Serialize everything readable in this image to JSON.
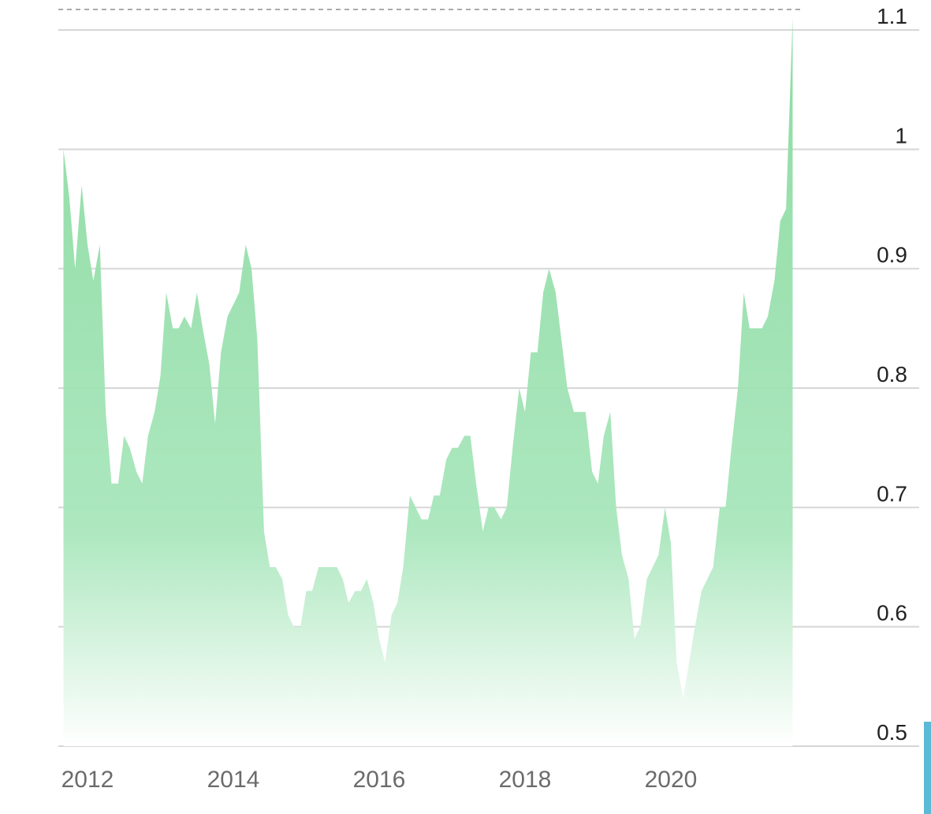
{
  "chart_data": {
    "type": "area",
    "title": "",
    "xlabel": "",
    "ylabel": "",
    "x_tick_labels": [
      "2012",
      "2014",
      "2016",
      "2018",
      "2020"
    ],
    "x_tick_values": [
      2012,
      2014,
      2016,
      2018,
      2020
    ],
    "y_tick_labels": [
      "0.5",
      "0.6",
      "0.7",
      "0.8",
      "0.9",
      "1",
      "1.1"
    ],
    "y_tick_values": [
      0.5,
      0.6,
      0.7,
      0.8,
      0.9,
      1.0,
      1.1
    ],
    "xlim": [
      2011.65,
      2021.65
    ],
    "ylim": [
      0.5,
      1.1
    ],
    "reference_line": 1.12,
    "grid": true,
    "y_axis_side": "right",
    "colors": {
      "area_top": "#8edba3",
      "area_bottom": "#ffffff",
      "grid": "#d6d6d6",
      "reference_line": "#aaaaaa",
      "accent_bar": "#5bbad5"
    },
    "series": [
      {
        "x": [
          2011.67,
          2011.75,
          2011.83,
          2011.92,
          2012.0,
          2012.08,
          2012.17,
          2012.25,
          2012.33,
          2012.42,
          2012.5,
          2012.58,
          2012.67,
          2012.75,
          2012.83,
          2012.92,
          2013.0,
          2013.08,
          2013.17,
          2013.25,
          2013.33,
          2013.42,
          2013.5,
          2013.58,
          2013.67,
          2013.75,
          2013.83,
          2013.92,
          2014.0,
          2014.08,
          2014.17,
          2014.25,
          2014.33,
          2014.42,
          2014.5,
          2014.58,
          2014.67,
          2014.75,
          2014.83,
          2014.92,
          2015.0,
          2015.08,
          2015.17,
          2015.25,
          2015.33,
          2015.42,
          2015.5,
          2015.58,
          2015.67,
          2015.75,
          2015.83,
          2015.92,
          2016.0,
          2016.08,
          2016.17,
          2016.25,
          2016.33,
          2016.42,
          2016.5,
          2016.58,
          2016.67,
          2016.75,
          2016.83,
          2016.92,
          2017.0,
          2017.08,
          2017.17,
          2017.25,
          2017.33,
          2017.42,
          2017.5,
          2017.58,
          2017.67,
          2017.75,
          2017.83,
          2017.92,
          2018.0,
          2018.08,
          2018.17,
          2018.25,
          2018.33,
          2018.42,
          2018.5,
          2018.58,
          2018.67,
          2018.75,
          2018.83,
          2018.92,
          2019.0,
          2019.08,
          2019.17,
          2019.25,
          2019.33,
          2019.42,
          2019.5,
          2019.58,
          2019.67,
          2019.75,
          2019.83,
          2019.92,
          2020.0,
          2020.08,
          2020.17,
          2020.25,
          2020.33,
          2020.42,
          2020.5,
          2020.58,
          2020.67,
          2020.75,
          2020.83,
          2020.92,
          2021.0,
          2021.08,
          2021.17,
          2021.25,
          2021.33,
          2021.42,
          2021.5,
          2021.58,
          2021.67
        ],
        "y": [
          1.0,
          0.96,
          0.9,
          0.97,
          0.92,
          0.89,
          0.92,
          0.78,
          0.72,
          0.72,
          0.76,
          0.75,
          0.73,
          0.72,
          0.76,
          0.78,
          0.81,
          0.88,
          0.85,
          0.85,
          0.86,
          0.85,
          0.88,
          0.85,
          0.82,
          0.77,
          0.83,
          0.86,
          0.87,
          0.88,
          0.92,
          0.9,
          0.84,
          0.68,
          0.65,
          0.65,
          0.64,
          0.61,
          0.6,
          0.6,
          0.63,
          0.63,
          0.65,
          0.65,
          0.65,
          0.65,
          0.64,
          0.62,
          0.63,
          0.63,
          0.64,
          0.62,
          0.59,
          0.57,
          0.61,
          0.62,
          0.65,
          0.71,
          0.7,
          0.69,
          0.69,
          0.71,
          0.71,
          0.74,
          0.75,
          0.75,
          0.76,
          0.76,
          0.72,
          0.68,
          0.7,
          0.7,
          0.69,
          0.7,
          0.75,
          0.8,
          0.78,
          0.83,
          0.83,
          0.88,
          0.9,
          0.88,
          0.84,
          0.8,
          0.78,
          0.78,
          0.78,
          0.73,
          0.72,
          0.76,
          0.78,
          0.7,
          0.66,
          0.64,
          0.59,
          0.6,
          0.64,
          0.65,
          0.66,
          0.7,
          0.67,
          0.57,
          0.54,
          0.57,
          0.6,
          0.63,
          0.64,
          0.65,
          0.7,
          0.7,
          0.75,
          0.8,
          0.88,
          0.85,
          0.85,
          0.85,
          0.86,
          0.89,
          0.94,
          0.95,
          1.11
        ]
      }
    ]
  }
}
